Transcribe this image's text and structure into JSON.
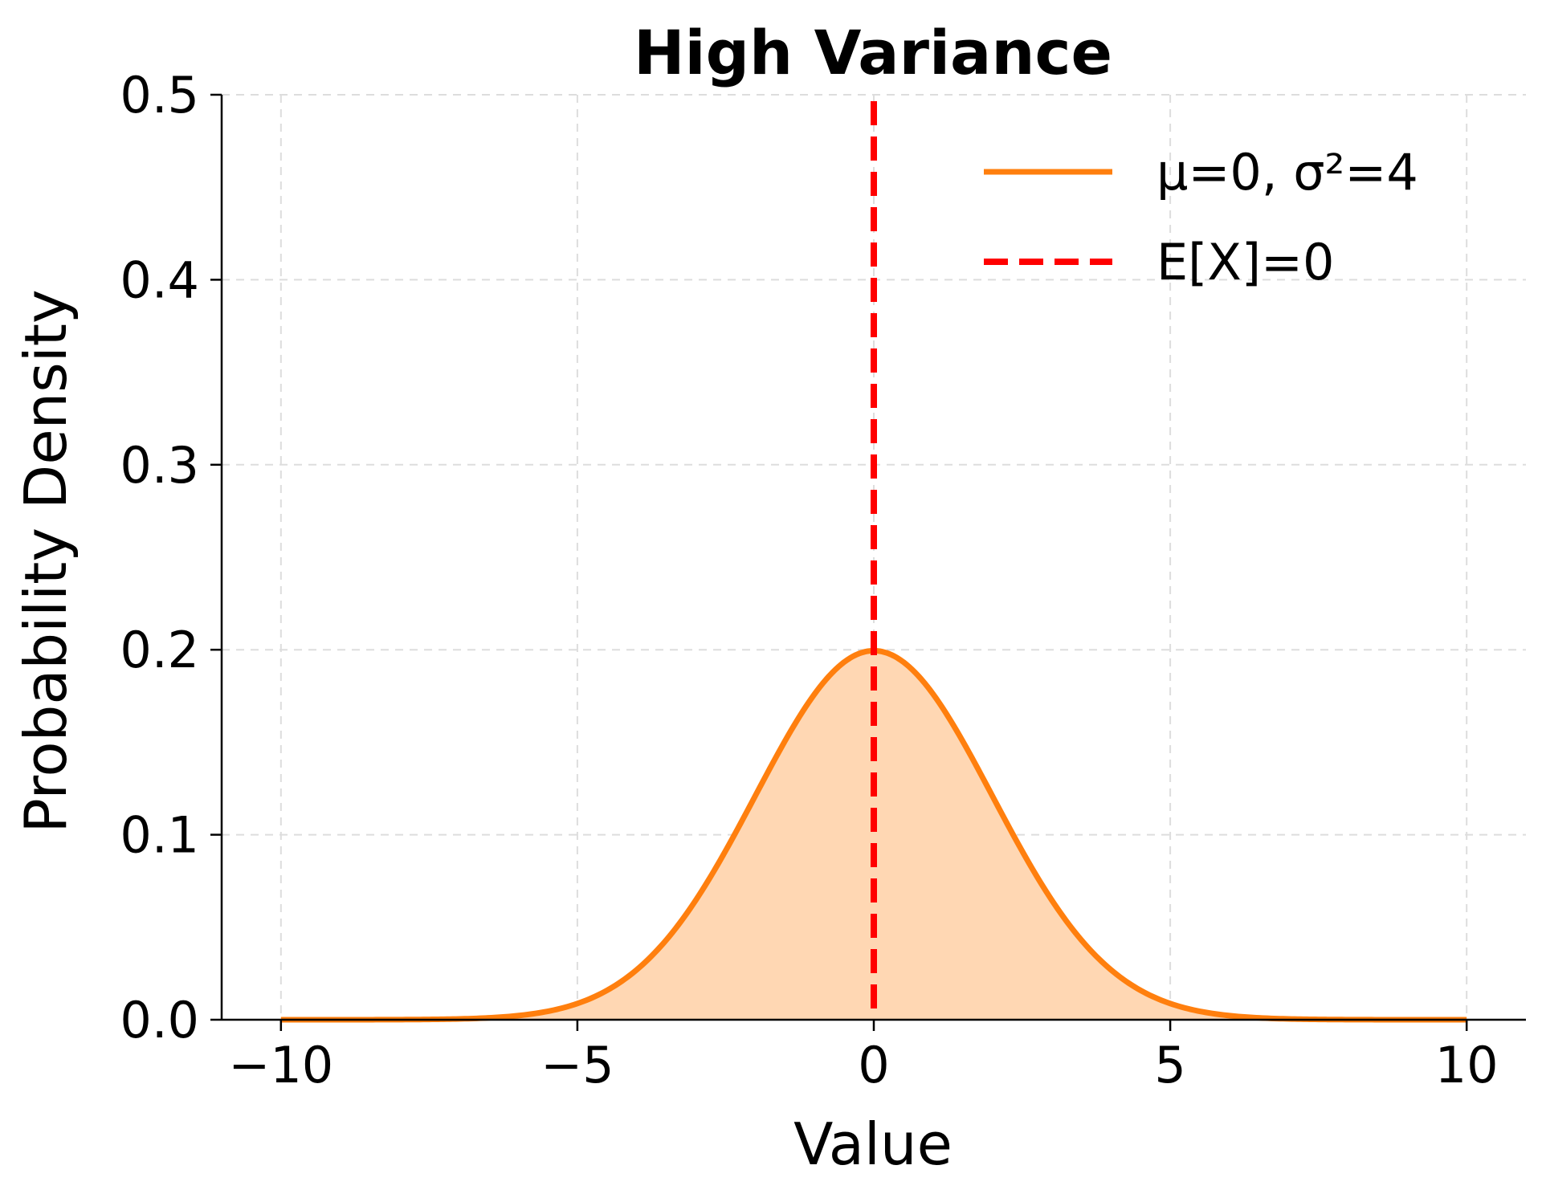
{
  "chart_data": {
    "type": "line",
    "title": "High Variance",
    "xlabel": "Value",
    "ylabel": "Probability Density",
    "xlim": [
      -11,
      11
    ],
    "ylim": [
      0,
      0.5
    ],
    "x_range": [
      -10,
      10
    ],
    "x_ticks": [
      -10,
      -5,
      0,
      5,
      10
    ],
    "x_tick_labels": [
      "−10",
      "−5",
      "0",
      "5",
      "10"
    ],
    "y_ticks": [
      0.0,
      0.1,
      0.2,
      0.3,
      0.4,
      0.5
    ],
    "y_tick_labels": [
      "0.0",
      "0.1",
      "0.2",
      "0.3",
      "0.4",
      "0.5"
    ],
    "grid": true,
    "legend_position": "top-right",
    "series": [
      {
        "name": "μ=0, σ²=4",
        "kind": "normal_pdf",
        "mean": 0,
        "variance": 4,
        "color": "#ff7f0e",
        "fill_color": "#ffd7b3",
        "line_style": "solid",
        "filled": true
      },
      {
        "name": "E[X]=0",
        "kind": "vertical_line",
        "x": 0,
        "color": "#ff0000",
        "line_style": "dashed"
      }
    ]
  }
}
